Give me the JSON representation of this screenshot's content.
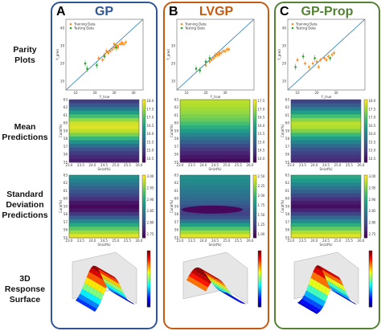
{
  "row_labels": [
    {
      "key": "parity",
      "lines": [
        "Parity",
        "Plots"
      ]
    },
    {
      "key": "mean",
      "lines": [
        "Mean",
        "Predictions"
      ]
    },
    {
      "key": "std",
      "lines": [
        "Standard",
        "Deviation",
        "Predictions"
      ]
    },
    {
      "key": "surface",
      "lines": [
        "3D",
        "Response",
        "Surface"
      ]
    }
  ],
  "panels": [
    {
      "letter": "A",
      "title": "GP",
      "color": "#2f5597"
    },
    {
      "letter": "B",
      "title": "LVGP",
      "color": "#c55a11"
    },
    {
      "letter": "C",
      "title": "GP-Prop",
      "color": "#548235"
    }
  ],
  "chart_data": [
    {
      "type": "scatter",
      "panel": "A",
      "xlabel": "Y_true",
      "ylabel": "Y_pred",
      "legend": [
        "Training Data",
        "Testing Data"
      ],
      "xticks": [
        "10",
        "20",
        "30",
        "40"
      ],
      "yticks": [
        "10",
        "20",
        "30",
        "40"
      ],
      "train": [
        [
          22,
          23
        ],
        [
          24,
          22
        ],
        [
          25,
          25
        ],
        [
          27,
          26
        ],
        [
          28,
          27
        ],
        [
          29,
          28
        ],
        [
          30,
          29
        ],
        [
          31,
          30
        ],
        [
          32,
          30
        ],
        [
          33,
          31
        ],
        [
          34,
          31
        ],
        [
          35,
          31
        ],
        [
          36,
          32
        ],
        [
          32,
          29
        ],
        [
          26,
          27
        ],
        [
          30,
          31
        ],
        [
          34,
          32
        ]
      ],
      "test": [
        [
          15,
          20
        ],
        [
          16,
          17
        ],
        [
          21,
          19
        ],
        [
          25,
          24
        ],
        [
          31,
          29
        ]
      ]
    },
    {
      "type": "scatter",
      "panel": "B",
      "xlabel": "Y_true",
      "ylabel": "Y_pred",
      "legend": [
        "Training Data",
        "Testing Data"
      ],
      "xticks": [
        "10",
        "20",
        "30"
      ],
      "yticks": [
        "10",
        "20",
        "30"
      ],
      "train": [
        [
          20,
          19
        ],
        [
          22,
          21
        ],
        [
          23,
          22
        ],
        [
          24,
          23
        ],
        [
          25,
          24
        ],
        [
          26,
          25
        ],
        [
          27,
          25
        ],
        [
          28,
          26
        ],
        [
          29,
          27
        ],
        [
          30,
          27
        ],
        [
          31,
          28
        ],
        [
          32,
          28
        ],
        [
          27,
          26
        ],
        [
          25,
          25
        ]
      ],
      "test": [
        [
          15,
          17
        ],
        [
          17,
          16
        ],
        [
          20,
          21
        ],
        [
          22,
          23
        ]
      ]
    },
    {
      "type": "scatter",
      "panel": "C",
      "xlabel": "Y_true",
      "ylabel": "Y_pred",
      "legend": [
        "Training Data",
        "Testing Data"
      ],
      "xticks": [
        "10",
        "20",
        "30"
      ],
      "yticks": [
        "10",
        "20",
        "30",
        "40"
      ],
      "train": [
        [
          10,
          22
        ],
        [
          14,
          20
        ],
        [
          16,
          18
        ],
        [
          18,
          20
        ],
        [
          20,
          21
        ],
        [
          22,
          22
        ],
        [
          24,
          23
        ],
        [
          26,
          24
        ],
        [
          28,
          25
        ],
        [
          29,
          26
        ],
        [
          25,
          22
        ],
        [
          21,
          18
        ]
      ],
      "test": [
        [
          9,
          18
        ],
        [
          13,
          24
        ],
        [
          19,
          23
        ],
        [
          27,
          23
        ]
      ]
    },
    {
      "type": "heatmap",
      "panel": "A",
      "kind": "mean",
      "xlabel": "Sn(at%)",
      "ylabel": "Cu(at%)",
      "xticks": [
        "23.0",
        "23.5",
        "24.0",
        "24.5",
        "25.0",
        "25.5",
        "26.0"
      ],
      "yticks": [
        "63",
        "62",
        "61",
        "60",
        "59",
        "58",
        "57",
        "56",
        "55"
      ],
      "colorbar": [
        "18.0",
        "17.5",
        "17.0",
        "16.5",
        "16.0",
        "15.5",
        "15.0",
        "14.5"
      ],
      "rows": [
        0.18,
        0.28,
        0.4,
        0.55,
        0.7,
        0.84,
        0.93,
        0.95,
        0.9,
        0.8,
        0.66,
        0.5,
        0.36,
        0.26,
        0.18,
        0.12,
        0.08
      ]
    },
    {
      "type": "heatmap",
      "panel": "B",
      "kind": "mean",
      "xlabel": "Sn(at%)",
      "ylabel": "Cu(at%)",
      "xticks": [
        "23.0",
        "23.5",
        "24.0",
        "24.5",
        "25.0",
        "25.5",
        "26.0"
      ],
      "yticks": [
        "63",
        "62",
        "61",
        "60",
        "59",
        "58",
        "57",
        "56",
        "55"
      ],
      "colorbar": [
        "17.5",
        "17.0",
        "16.5",
        "16.0",
        "15.5",
        "15.0",
        "14.5",
        "14.0"
      ],
      "rows": [
        0.9,
        0.88,
        0.86,
        0.84,
        0.8,
        0.76,
        0.7,
        0.62,
        0.54,
        0.46,
        0.38,
        0.3,
        0.22,
        0.16,
        0.1,
        0.06,
        0.03
      ]
    },
    {
      "type": "heatmap",
      "panel": "C",
      "kind": "mean",
      "xlabel": "Sn(at%)",
      "ylabel": "Cu(at%)",
      "xticks": [
        "23.0",
        "23.5",
        "24.0",
        "24.5",
        "25.0",
        "25.5",
        "26.0"
      ],
      "yticks": [
        "63",
        "62",
        "61",
        "60",
        "59",
        "58",
        "57",
        "56",
        "55"
      ],
      "colorbar": [
        "18.0",
        "17.5",
        "17.0",
        "16.5",
        "16.0",
        "15.5",
        "15.0",
        "14.5"
      ],
      "rows": [
        0.2,
        0.3,
        0.42,
        0.56,
        0.7,
        0.82,
        0.9,
        0.88,
        0.8,
        0.68,
        0.55,
        0.44,
        0.34,
        0.26,
        0.2,
        0.15,
        0.12
      ]
    },
    {
      "type": "heatmap",
      "panel": "A",
      "kind": "std",
      "xlabel": "Sn(at%)",
      "ylabel": "Cu(at%)",
      "xticks": [
        "23.0",
        "23.5",
        "24.0",
        "24.5",
        "25.0",
        "25.5",
        "26.0"
      ],
      "yticks": [
        "63",
        "62",
        "61",
        "60",
        "59",
        "58",
        "57",
        "56",
        "55"
      ],
      "colorbar": [
        "3.00",
        "2.95",
        "2.90",
        "2.85",
        "2.80",
        "2.75"
      ],
      "rows": [
        0.5,
        0.44,
        0.38,
        0.32,
        0.26,
        0.2,
        0.14,
        0.06,
        0.02,
        0.06,
        0.16,
        0.3,
        0.46,
        0.6,
        0.74,
        0.86,
        0.96
      ]
    },
    {
      "type": "heatmap",
      "panel": "B",
      "kind": "std",
      "xlabel": "Sn(at%)",
      "ylabel": "Cu(at%)",
      "xticks": [
        "23.0",
        "23.5",
        "24.0",
        "24.5",
        "25.0",
        "25.5",
        "26.0"
      ],
      "yticks": [
        "63",
        "62",
        "61",
        "60",
        "59",
        "58",
        "57",
        "56",
        "55"
      ],
      "colorbar": [
        "2.50",
        "2.25",
        "2.00",
        "1.75",
        "1.50",
        "1.25",
        "1.00"
      ],
      "rows": [
        0.5,
        0.48,
        0.46,
        0.43,
        0.4,
        0.37,
        0.34,
        0.3,
        0.26,
        0.22,
        0.2,
        0.26,
        0.4,
        0.56,
        0.72,
        0.86,
        0.96
      ]
    },
    {
      "type": "heatmap",
      "panel": "C",
      "kind": "std",
      "xlabel": "Sn(at%)",
      "ylabel": "Cu(at%)",
      "xticks": [
        "23.0",
        "23.5",
        "24.0",
        "24.5",
        "25.0",
        "25.5",
        "26.0"
      ],
      "yticks": [
        "63",
        "62",
        "61",
        "60",
        "59",
        "58",
        "57",
        "56",
        "55"
      ],
      "colorbar": [
        "3.00",
        "2.95",
        "2.90",
        "2.85",
        "2.80",
        "2.75"
      ],
      "rows": [
        0.6,
        0.54,
        0.46,
        0.38,
        0.3,
        0.22,
        0.14,
        0.08,
        0.04,
        0.1,
        0.2,
        0.34,
        0.48,
        0.62,
        0.76,
        0.88,
        0.96
      ]
    }
  ],
  "colors": {
    "train": "#ff8c1a",
    "test": "#2ca02c",
    "parity_line": "#1f77b4"
  }
}
